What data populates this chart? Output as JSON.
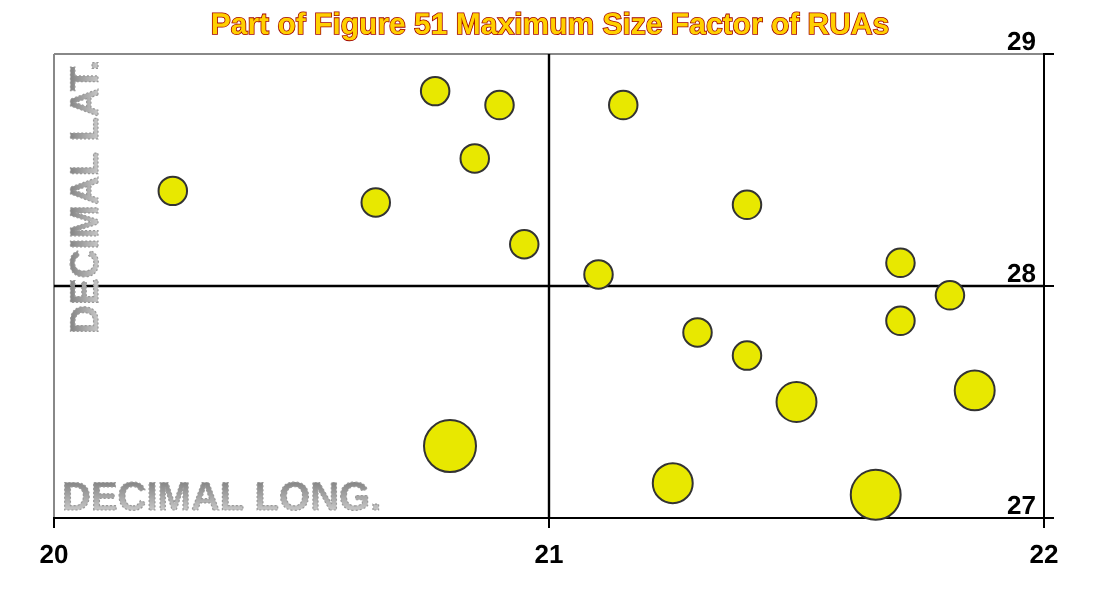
{
  "chart_data": {
    "type": "bubble",
    "title": "Part of Figure 51  Maximum Size Factor of RUAs",
    "xlabel": "DECIMAL LONG.",
    "ylabel": "DECIMAL LAT.",
    "xlim": [
      20,
      22
    ],
    "ylim": [
      27,
      29
    ],
    "xticks": [
      20,
      21,
      22
    ],
    "yticks": [
      27,
      28,
      29
    ],
    "grid": false,
    "ref_lines": [
      {
        "axis": "x",
        "value": 21,
        "label": null
      },
      {
        "axis": "y",
        "value": 28,
        "label": null
      }
    ],
    "series": [
      {
        "color": "#e8e800",
        "x": [
          20.24,
          20.65,
          20.77,
          20.9,
          20.85,
          20.95,
          20.8,
          21.15,
          21.4,
          21.1,
          21.71,
          21.81,
          21.71,
          21.3,
          21.4,
          21.5,
          21.86,
          21.25,
          21.66
        ],
        "values": [
          28.41,
          28.36,
          28.84,
          28.78,
          28.55,
          28.18,
          27.31,
          28.78,
          28.35,
          28.05,
          28.1,
          27.96,
          27.85,
          27.8,
          27.7,
          27.5,
          27.55,
          27.15,
          27.1
        ],
        "sizes": [
          0.3,
          0.3,
          0.3,
          0.3,
          0.3,
          0.3,
          1,
          0.3,
          0.3,
          0.3,
          0.3,
          0.3,
          0.3,
          0.3,
          0.3,
          0.59,
          0.59,
          0.59,
          0.92
        ]
      }
    ]
  }
}
